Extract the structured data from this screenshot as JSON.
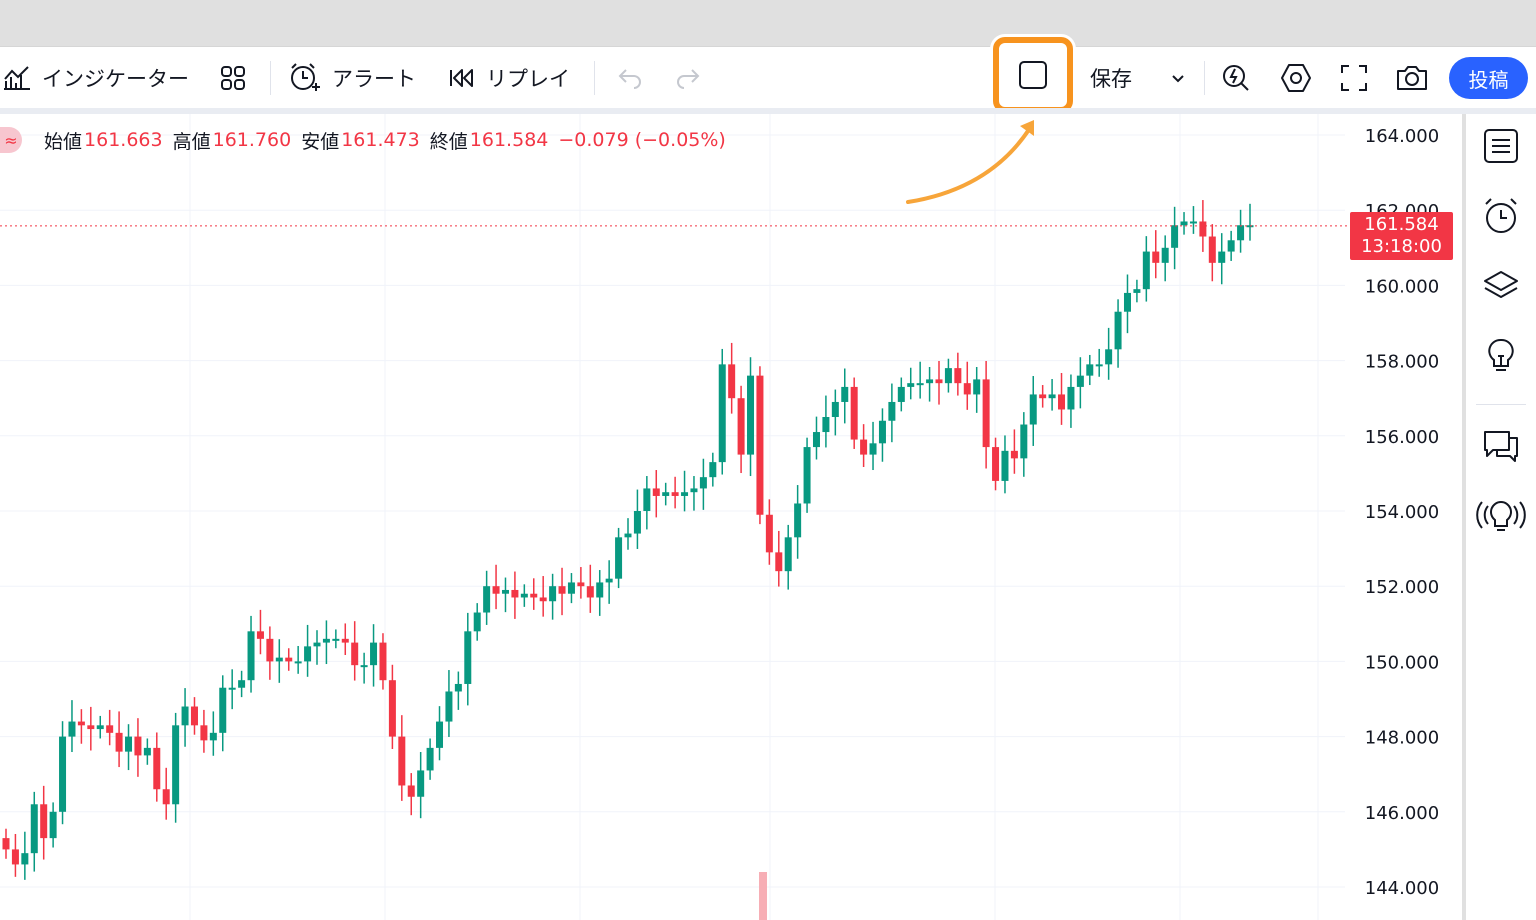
{
  "toolbar": {
    "indicator_label": "インジケーター",
    "alert_label": "アラート",
    "replay_label": "リプレイ",
    "save_label": "保存",
    "post_label": "投稿"
  },
  "legend": {
    "symbol_badge": "≈",
    "open_label": "始値",
    "open_value": "161.663",
    "high_label": "高値",
    "high_value": "161.760",
    "low_label": "安値",
    "low_value": "161.473",
    "close_label": "終値",
    "close_value": "161.584",
    "change": "−0.079 (−0.05%)"
  },
  "price_label": {
    "price": "161.584",
    "countdown": "13:18:00"
  },
  "colors": {
    "up": "#089981",
    "down": "#f23645",
    "accent": "#2962ff",
    "highlight": "#f7931e"
  },
  "chart_data": {
    "type": "candlestick",
    "ylim": [
      143.5,
      164.5
    ],
    "y_ticks": [
      "164.000",
      "162.000",
      "160.000",
      "158.000",
      "156.000",
      "154.000",
      "152.000",
      "150.000",
      "148.000",
      "146.000",
      "144.000"
    ],
    "last_price": 161.584,
    "closes": [
      145.0,
      144.6,
      144.9,
      146.2,
      145.3,
      146.0,
      148.0,
      148.4,
      148.3,
      148.2,
      148.3,
      148.1,
      147.6,
      148.0,
      147.5,
      147.7,
      146.6,
      146.2,
      148.3,
      148.8,
      148.3,
      147.9,
      148.1,
      149.3,
      149.3,
      149.5,
      150.8,
      150.6,
      150.0,
      150.1,
      150.0,
      150.0,
      150.4,
      150.5,
      150.6,
      150.6,
      150.5,
      149.9,
      149.9,
      150.5,
      149.5,
      148.0,
      146.7,
      146.4,
      147.1,
      147.7,
      148.4,
      149.2,
      149.4,
      150.8,
      151.3,
      152.0,
      151.8,
      151.9,
      151.7,
      151.8,
      151.7,
      151.6,
      152.0,
      151.8,
      152.1,
      152.0,
      151.7,
      152.1,
      152.2,
      153.3,
      153.4,
      154.0,
      154.6,
      154.4,
      154.5,
      154.4,
      154.5,
      154.6,
      154.9,
      155.3,
      157.9,
      157.0,
      155.5,
      157.6,
      153.9,
      152.9,
      152.4,
      153.3,
      154.2,
      155.7,
      156.1,
      156.5,
      156.9,
      157.3,
      155.9,
      155.5,
      155.8,
      156.4,
      156.9,
      157.3,
      157.4,
      157.4,
      157.5,
      157.4,
      157.8,
      157.4,
      157.1,
      157.5,
      155.7,
      154.8,
      155.6,
      155.4,
      156.3,
      157.1,
      157.0,
      157.1,
      156.7,
      157.3,
      157.6,
      157.9,
      157.9,
      158.3,
      159.3,
      159.8,
      159.9,
      160.9,
      160.6,
      161.0,
      161.6,
      161.7,
      161.7,
      161.3,
      160.6,
      160.9,
      161.2,
      161.6,
      161.6
    ]
  }
}
